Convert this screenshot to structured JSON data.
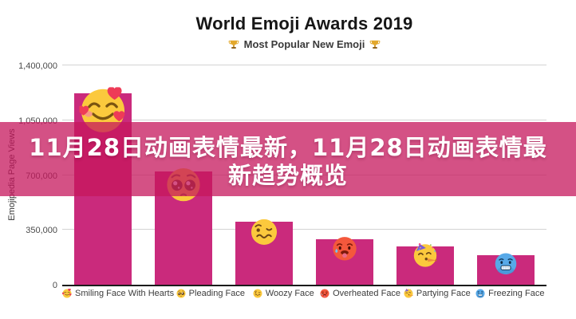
{
  "chart_data": {
    "type": "bar",
    "title": "World Emoji Awards 2019",
    "subtitle": "Most Popular New Emoji",
    "subtitle_icon": "trophy-icon",
    "ylabel": "Emojipedia Page Views",
    "xlabel": "",
    "ylim": [
      0,
      1400000
    ],
    "yticks": [
      "0",
      "350,000",
      "700,000",
      "1,050,000",
      "1,400,000"
    ],
    "grid": true,
    "legend": false,
    "bar_color": "#CA2A7C",
    "axis_color": "#1b1b1b",
    "gridline_color": "#d3d3d3",
    "categories": [
      "Smiling Face With Hearts",
      "Pleading Face",
      "Woozy Face",
      "Overheated Face",
      "Partying Face",
      "Freezing Face"
    ],
    "emoji": [
      "smiling-face-with-hearts",
      "pleading-face",
      "woozy-face",
      "overheated-face",
      "partying-face",
      "freezing-face"
    ],
    "values": [
      1220000,
      725000,
      400000,
      288000,
      245000,
      189000
    ]
  },
  "overlay": {
    "line1": "11月28日动画表情最新，11月28日动画表情最",
    "line2": "新趋势概览",
    "background": "rgba(198,23,92,0.75)",
    "text_color": "#ffffff"
  }
}
